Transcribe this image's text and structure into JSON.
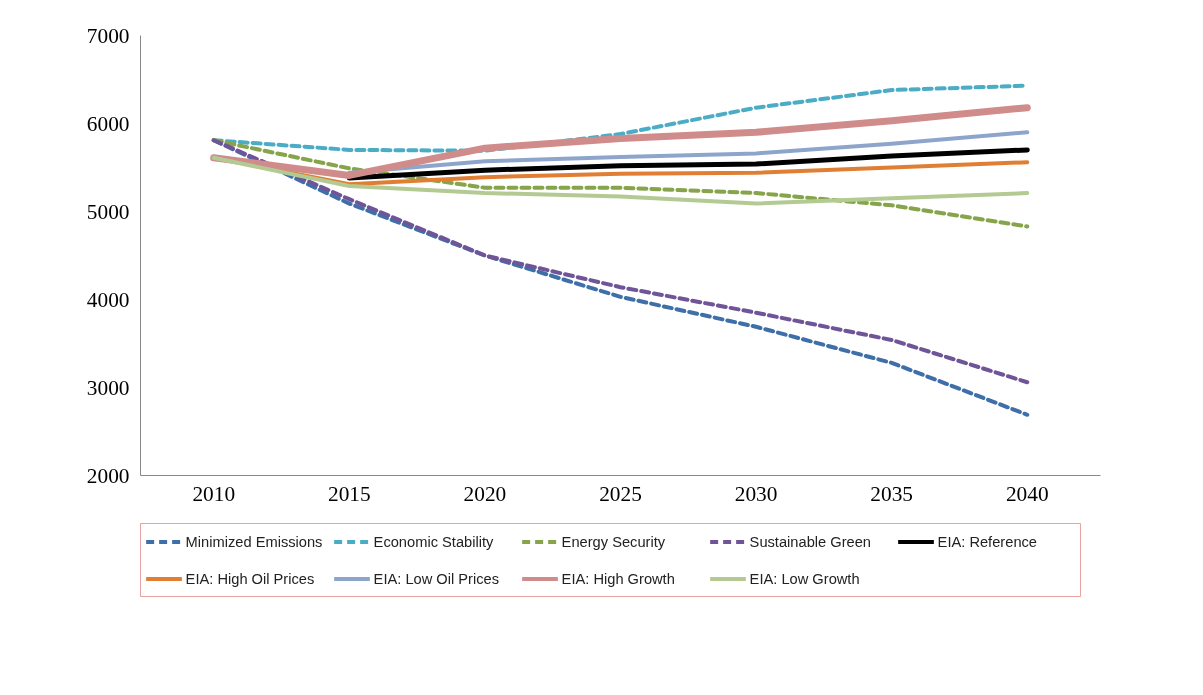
{
  "chart_data": {
    "type": "line",
    "x": [
      2010,
      2015,
      2020,
      2025,
      2030,
      2035,
      2040
    ],
    "xlim": [
      2007.3,
      2042.7
    ],
    "xticks": [
      2010,
      2015,
      2020,
      2025,
      2030,
      2035,
      2040
    ],
    "ylim": [
      2000,
      7000
    ],
    "yticks": [
      2000,
      3000,
      4000,
      5000,
      6000,
      7000
    ],
    "grid": false,
    "legend": "bottom",
    "line_style": "solid",
    "series": [
      {
        "name": "Minimized Emissions",
        "color": "#3f6fa8",
        "line_style": "dashed",
        "values": [
          5810,
          5090,
          4500,
          4030,
          3690,
          3280,
          2690
        ]
      },
      {
        "name": "Economic Stability",
        "color": "#4bacc6",
        "line_style": "dashed",
        "values": [
          5810,
          5700,
          5690,
          5880,
          6180,
          6380,
          6430
        ]
      },
      {
        "name": "Energy Security",
        "color": "#86a449",
        "line_style": "dashed",
        "values": [
          5810,
          5490,
          5270,
          5270,
          5210,
          5070,
          4830
        ]
      },
      {
        "name": "Sustainable Green",
        "color": "#6f5597",
        "line_style": "dashed",
        "values": [
          5810,
          5140,
          4500,
          4140,
          3850,
          3540,
          3060
        ]
      },
      {
        "name": "EIA: Reference",
        "color": "#000000",
        "values": [
          null,
          5380,
          5470,
          5520,
          5540,
          5630,
          5700
        ]
      },
      {
        "name": "EIA: High Oil Prices",
        "color": "#e07f34",
        "values": [
          5610,
          5310,
          5390,
          5430,
          5440,
          5500,
          5560
        ]
      },
      {
        "name": "EIA: Low Oil Prices",
        "color": "#8ea5cb",
        "values": [
          null,
          5440,
          5570,
          5620,
          5660,
          5770,
          5900
        ]
      },
      {
        "name": "EIA: High Growth",
        "color": "#d08b8b",
        "values": [
          5610,
          5410,
          5720,
          5830,
          5900,
          6030,
          6180
        ]
      },
      {
        "name": "EIA: Low Growth",
        "color": "#b3cb92",
        "values": [
          5610,
          5290,
          5210,
          5170,
          5090,
          5150,
          5210
        ]
      }
    ]
  }
}
